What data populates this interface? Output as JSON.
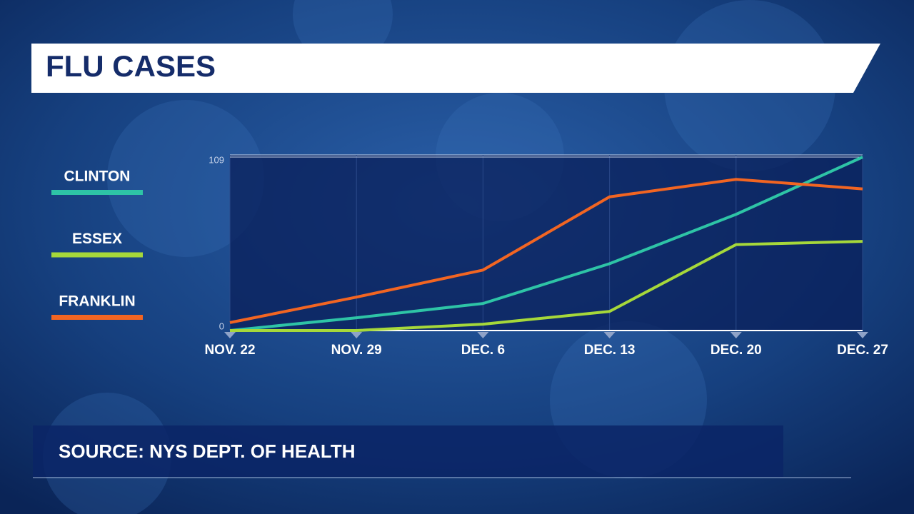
{
  "chart_data": {
    "type": "line",
    "title": "FLU CASES",
    "source": "SOURCE: NYS DEPT. OF HEALTH",
    "categories": [
      "NOV. 22",
      "NOV. 29",
      "DEC. 6",
      "DEC. 13",
      "DEC. 20",
      "DEC. 27"
    ],
    "series": [
      {
        "name": "CLINTON",
        "color": "#2ec4a6",
        "values": [
          0,
          8,
          17,
          42,
          73,
          109
        ]
      },
      {
        "name": "ESSEX",
        "color": "#a6d83a",
        "values": [
          0,
          0,
          4,
          12,
          54,
          56
        ]
      },
      {
        "name": "FRANKLIN",
        "color": "#f26522",
        "values": [
          5,
          21,
          38,
          84,
          95,
          89
        ]
      }
    ],
    "ylim": [
      0,
      109
    ],
    "yticks": [
      0,
      109
    ],
    "grid": true
  }
}
